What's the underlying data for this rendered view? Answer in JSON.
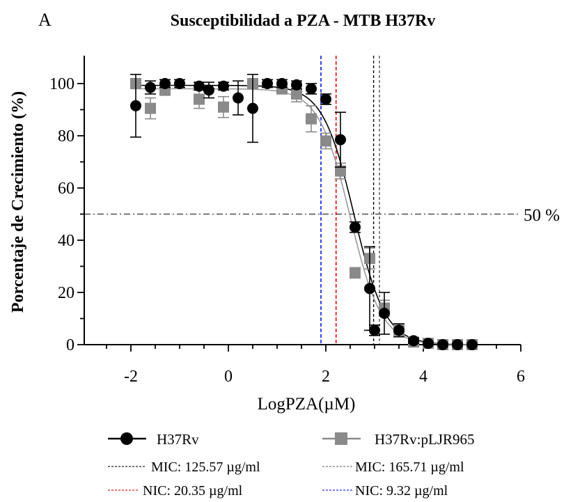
{
  "panel_label": "A",
  "chart_data": {
    "type": "scatter",
    "title": "Susceptibilidad a PZA - MTB H37Rv",
    "xlabel": "LogPZA(µM)",
    "ylabel": "Porcentaje de Crecimiento (%)",
    "xlim": [
      -2.9,
      6
    ],
    "ylim": [
      0,
      110
    ],
    "x_ticks": [
      -2,
      0,
      2,
      4,
      6
    ],
    "y_ticks": [
      0,
      20,
      40,
      60,
      80,
      100
    ],
    "grid": false,
    "legend_position": "bottom",
    "reference_line": {
      "y": 50,
      "label": "50 %"
    },
    "series": [
      {
        "name": "H37Rv",
        "marker": "circle",
        "color": "#000000",
        "points": [
          {
            "x": -1.9,
            "y": 91.5,
            "err": 12
          },
          {
            "x": -1.6,
            "y": 98.5,
            "err": 2.5
          },
          {
            "x": -1.3,
            "y": 100,
            "err": 1.5
          },
          {
            "x": -1.0,
            "y": 100,
            "err": 1.5
          },
          {
            "x": -0.6,
            "y": 99,
            "err": 1.5
          },
          {
            "x": -0.4,
            "y": 97.5,
            "err": 3
          },
          {
            "x": -0.1,
            "y": 99,
            "err": 1.5
          },
          {
            "x": 0.2,
            "y": 94.5,
            "err": 6.5
          },
          {
            "x": 0.5,
            "y": 90.5,
            "err": 13
          },
          {
            "x": 0.8,
            "y": 100,
            "err": 1.5
          },
          {
            "x": 1.1,
            "y": 100,
            "err": 1.5
          },
          {
            "x": 1.4,
            "y": 99.5,
            "err": 1.5
          },
          {
            "x": 1.7,
            "y": 98,
            "err": 2
          },
          {
            "x": 2.0,
            "y": 94,
            "err": 2
          },
          {
            "x": 2.3,
            "y": 78.5,
            "err": 10.5
          },
          {
            "x": 2.6,
            "y": 45,
            "err": 2
          },
          {
            "x": 2.9,
            "y": 21.5,
            "err": 16
          },
          {
            "x": 3.0,
            "y": 5.5,
            "err": 2
          },
          {
            "x": 3.2,
            "y": 12,
            "err": 8
          },
          {
            "x": 3.5,
            "y": 5.5,
            "err": 2.5
          },
          {
            "x": 3.8,
            "y": 1.5,
            "err": 1
          },
          {
            "x": 4.1,
            "y": 0.5,
            "err": 0.5
          },
          {
            "x": 4.4,
            "y": 0,
            "err": 0.5
          },
          {
            "x": 4.7,
            "y": 0,
            "err": 0.5
          },
          {
            "x": 5.0,
            "y": 0,
            "err": 0.5
          }
        ],
        "fit": {
          "top": 99.3,
          "bottom": 0,
          "logIC50": 2.58,
          "hill": -1.35
        },
        "mic_label": "MIC: 125.57 µg/ml",
        "mic_x": 2.98,
        "nic_label": "NIC: 20.35 µg/ml",
        "nic_x": 2.21
      },
      {
        "name": "H37Rv:pLJR965",
        "marker": "square",
        "color": "#8a8a8a",
        "points": [
          {
            "x": -1.9,
            "y": 100,
            "err": 1.5
          },
          {
            "x": -1.6,
            "y": 90.5,
            "err": 4
          },
          {
            "x": -1.3,
            "y": 97.5,
            "err": 2
          },
          {
            "x": -0.6,
            "y": 94,
            "err": 3.5
          },
          {
            "x": -0.1,
            "y": 91,
            "err": 4
          },
          {
            "x": 0.5,
            "y": 100,
            "err": 1.5
          },
          {
            "x": 1.1,
            "y": 98,
            "err": 2
          },
          {
            "x": 1.4,
            "y": 96,
            "err": 3
          },
          {
            "x": 1.7,
            "y": 86.5,
            "err": 5
          },
          {
            "x": 2.0,
            "y": 78,
            "err": 3
          },
          {
            "x": 2.3,
            "y": 66.5,
            "err": 3
          },
          {
            "x": 2.6,
            "y": 27.5,
            "err": 2
          },
          {
            "x": 2.9,
            "y": 33,
            "err": 4
          },
          {
            "x": 3.2,
            "y": 14,
            "err": 3
          },
          {
            "x": 3.5,
            "y": 5.5,
            "err": 2
          },
          {
            "x": 3.8,
            "y": 1,
            "err": 1
          },
          {
            "x": 4.1,
            "y": 0.5,
            "err": 0.5
          },
          {
            "x": 4.4,
            "y": 0,
            "err": 0.5
          },
          {
            "x": 4.7,
            "y": 0,
            "err": 0.5
          },
          {
            "x": 5.0,
            "y": 0,
            "err": 0.5
          }
        ],
        "fit": {
          "top": 98,
          "bottom": 0,
          "logIC50": 2.5,
          "hill": -1.35
        },
        "mic_label": "MIC: 165.71 µg/ml",
        "mic_x": 3.1,
        "nic_label": "NIC: 9.32 µg/ml",
        "nic_x": 1.9
      }
    ],
    "colors": {
      "mic_line": "#000000",
      "nic_line_h37rv": "#e02020",
      "nic_line_plj": "#2030e0",
      "axis": "#000000"
    }
  }
}
